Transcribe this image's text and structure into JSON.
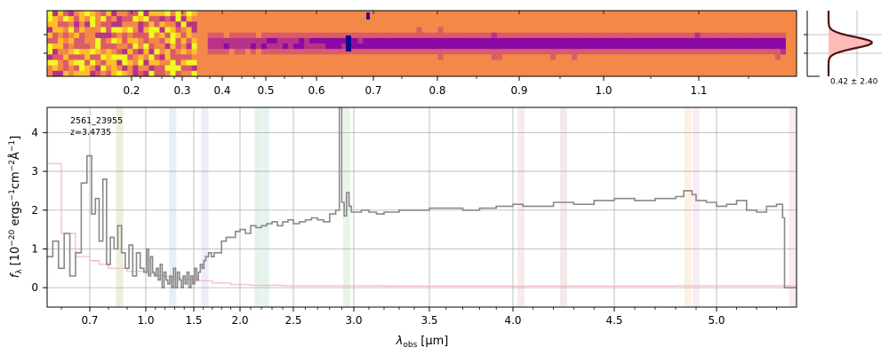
{
  "chart_data": [
    {
      "panel": "2d-spectrum",
      "type": "heatmap",
      "colormap": "plasma",
      "xlim": [
        0.1,
        1.2
      ],
      "top_ticks": [
        {
          "value": 0.2,
          "label": "0.2"
        },
        {
          "value": 0.3,
          "label": "0.3"
        },
        {
          "value": 0.4,
          "label": "0.4"
        },
        {
          "value": 0.5,
          "label": "0.5"
        },
        {
          "value": 0.6,
          "label": "0.6"
        },
        {
          "value": 0.7,
          "label": "0.7"
        },
        {
          "value": 0.8,
          "label": "0.8"
        },
        {
          "value": 0.9,
          "label": "0.9"
        },
        {
          "value": 1.0,
          "label": "1.0"
        },
        {
          "value": 1.1,
          "label": "1.1"
        }
      ],
      "trace_center_row": 0.5
    },
    {
      "panel": "cross-dispersion-profile",
      "type": "line",
      "annotation": "0.42 ± 2.40",
      "profile_color": "#4d0f0f",
      "fill_color": "#ffb3b3"
    },
    {
      "panel": "1d-spectrum",
      "type": "line",
      "xlabel_sym": "λ",
      "xlabel_sub": "obs",
      "xlabel_unit": "[μm]",
      "ylabel_sym": "f",
      "ylabel_sub": "λ",
      "ylabel_unit": "[10",
      "ylabel_exp1": "−20",
      "ylabel_mid": " ergs",
      "ylabel_exp2": "−1",
      "ylabel_mid2": "cm",
      "ylabel_exp3": "−2",
      "ylabel_mid3": "Å",
      "ylabel_exp4": "−1",
      "ylabel_end": "]",
      "object_id": "2561_23955",
      "redshift_label": "z=3.4735",
      "xlim": [
        0.55,
        5.4
      ],
      "ylim": [
        -0.5,
        4.65
      ],
      "grid": true,
      "x_ticks": [
        0.7,
        1.0,
        1.5,
        2.0,
        2.5,
        3.0,
        3.5,
        4.0,
        4.5,
        5.0
      ],
      "x_tick_labels": [
        "0.7",
        "1.0",
        "1.5",
        "2.0",
        "2.5",
        "3.0",
        "3.5",
        "4.0",
        "4.5",
        "5.0"
      ],
      "y_ticks": [
        0,
        1,
        2,
        3,
        4
      ],
      "y_tick_labels": [
        "0",
        "1",
        "2",
        "3",
        "4"
      ],
      "line_bands": [
        {
          "x": 0.86,
          "color": "#9aba5a"
        },
        {
          "x": 1.28,
          "color": "#8fb0e0"
        },
        {
          "x": 1.62,
          "color": "#a8a8e8"
        },
        {
          "x": 2.17,
          "color": "#8ac89a"
        },
        {
          "x": 2.24,
          "color": "#8ac8b0"
        },
        {
          "x": 2.94,
          "color": "#90d090"
        },
        {
          "x": 4.04,
          "color": "#e8a0a8"
        },
        {
          "x": 4.25,
          "color": "#d89aa0"
        },
        {
          "x": 4.86,
          "color": "#f0c090"
        },
        {
          "x": 4.9,
          "color": "#e8a8c8"
        },
        {
          "x": 5.38,
          "color": "#e8a0d0"
        }
      ],
      "series": [
        {
          "style": "steps",
          "color": "#888888",
          "x": [
            0.55,
            0.57,
            0.59,
            0.61,
            0.63,
            0.65,
            0.67,
            0.69,
            0.71,
            0.73,
            0.75,
            0.77,
            0.79,
            0.81,
            0.83,
            0.85,
            0.87,
            0.89,
            0.91,
            0.93,
            0.95,
            0.97,
            0.99,
            1.01,
            1.03,
            1.05,
            1.07,
            1.09,
            1.11,
            1.13,
            1.15,
            1.17,
            1.19,
            1.21,
            1.23,
            1.25,
            1.27,
            1.29,
            1.31,
            1.33,
            1.35,
            1.37,
            1.39,
            1.41,
            1.43,
            1.45,
            1.47,
            1.49,
            1.51,
            1.53,
            1.55,
            1.57,
            1.59,
            1.61,
            1.63,
            1.66,
            1.69,
            1.72,
            1.75,
            1.8,
            1.85,
            1.9,
            1.95,
            2.0,
            2.05,
            2.1,
            2.15,
            2.2,
            2.25,
            2.3,
            2.35,
            2.4,
            2.45,
            2.5,
            2.55,
            2.6,
            2.65,
            2.7,
            2.75,
            2.8,
            2.85,
            2.88,
            2.9,
            2.92,
            2.94,
            2.96,
            2.98,
            3.0,
            3.05,
            3.1,
            3.15,
            3.2,
            3.3,
            3.4,
            3.5,
            3.6,
            3.7,
            3.8,
            3.9,
            4.0,
            4.05,
            4.1,
            4.2,
            4.3,
            4.4,
            4.5,
            4.6,
            4.7,
            4.8,
            4.84,
            4.88,
            4.9,
            4.95,
            5.0,
            5.05,
            5.1,
            5.15,
            5.2,
            5.25,
            5.3,
            5.33,
            5.34,
            5.4
          ],
          "y": [
            0.8,
            1.2,
            0.5,
            1.4,
            0.3,
            0.9,
            2.7,
            3.4,
            1.9,
            2.3,
            1.2,
            2.8,
            0.6,
            1.3,
            1.0,
            1.6,
            0.9,
            0.5,
            1.1,
            0.3,
            0.9,
            0.5,
            0.4,
            1.0,
            0.3,
            0.8,
            0.4,
            0.3,
            0.5,
            0.2,
            0.6,
            0.0,
            0.4,
            0.2,
            0.1,
            0.3,
            0.0,
            0.5,
            0.0,
            0.4,
            0.2,
            0.0,
            0.3,
            0.1,
            0.4,
            0.0,
            0.3,
            0.1,
            0.5,
            0.2,
            0.4,
            0.6,
            0.5,
            0.7,
            0.8,
            0.9,
            0.8,
            0.9,
            0.9,
            1.2,
            1.3,
            1.3,
            1.45,
            1.5,
            1.4,
            1.6,
            1.55,
            1.6,
            1.65,
            1.7,
            1.6,
            1.7,
            1.75,
            1.65,
            1.7,
            1.75,
            1.8,
            1.75,
            1.7,
            1.9,
            2.0,
            4.65,
            2.2,
            1.85,
            2.45,
            2.1,
            1.95,
            1.95,
            2.0,
            1.95,
            1.9,
            1.95,
            2.0,
            2.0,
            2.05,
            2.05,
            2.0,
            2.05,
            2.1,
            2.15,
            2.1,
            2.1,
            2.2,
            2.15,
            2.25,
            2.3,
            2.25,
            2.3,
            2.35,
            2.5,
            2.4,
            2.25,
            2.2,
            2.1,
            2.15,
            2.25,
            2.0,
            1.95,
            2.1,
            2.15,
            1.8,
            0.0,
            0.0
          ]
        },
        {
          "style": "steps",
          "color": "#f4b8b8",
          "x": [
            0.55,
            0.6,
            0.65,
            0.7,
            0.75,
            0.8,
            0.9,
            1.0,
            1.1,
            1.2,
            1.3,
            1.4,
            1.5,
            1.7,
            1.9,
            2.1,
            2.4,
            2.8,
            3.2,
            3.6,
            4.0,
            4.4,
            4.8,
            5.2,
            5.4
          ],
          "y": [
            3.2,
            1.4,
            0.8,
            0.7,
            0.6,
            0.5,
            0.42,
            0.36,
            0.32,
            0.28,
            0.25,
            0.22,
            0.18,
            0.12,
            0.08,
            0.06,
            0.05,
            0.05,
            0.04,
            0.04,
            0.04,
            0.04,
            0.05,
            0.05,
            0.05
          ]
        }
      ]
    }
  ]
}
